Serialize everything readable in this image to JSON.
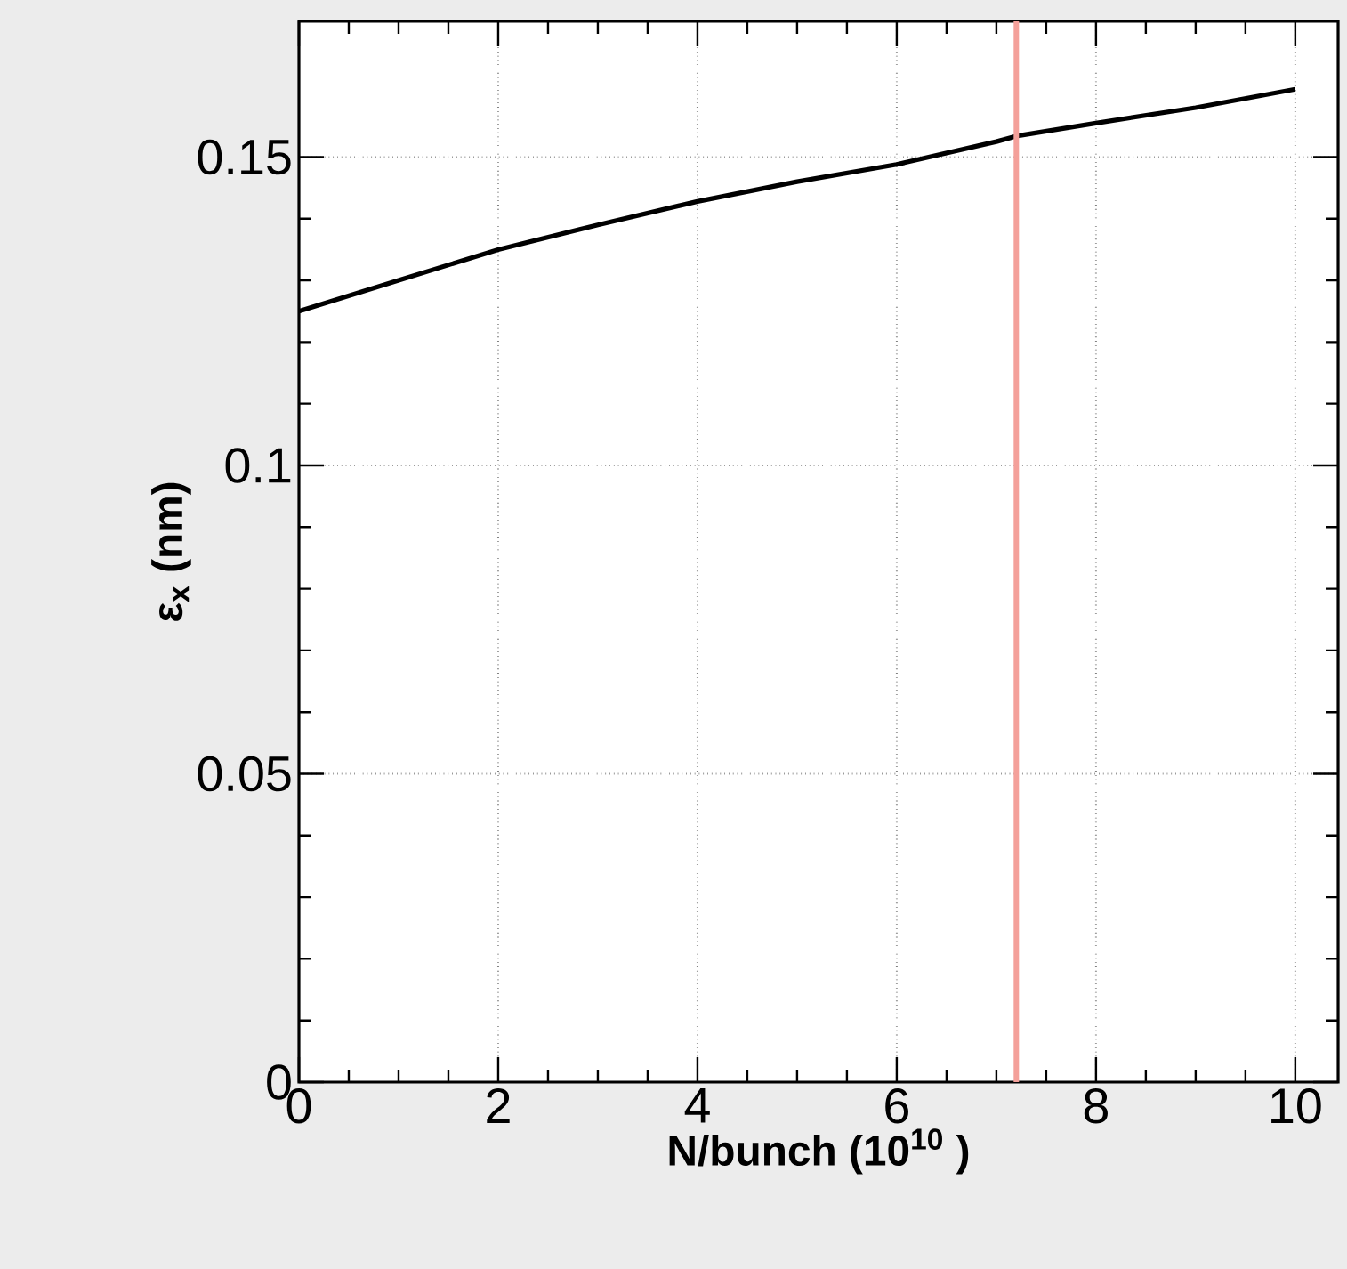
{
  "chart_data": {
    "type": "line",
    "xlabel": "N/bunch (10$^{10}$ )",
    "ylabel": "ε$_{x}$ (nm)",
    "x": [
      0,
      1,
      2,
      3,
      4,
      5,
      6,
      7,
      7.2,
      8,
      9,
      10
    ],
    "series": [
      {
        "color": "#000000",
        "values": [
          0.125,
          0.13,
          0.135,
          0.139,
          0.1428,
          0.146,
          0.1488,
          0.1525,
          0.1534,
          0.1555,
          0.158,
          0.161
        ]
      }
    ],
    "xlim": [
      0,
      10.43
    ],
    "ylim": [
      0,
      0.172
    ],
    "xticks": [
      0,
      2,
      4,
      6,
      8,
      10
    ],
    "yticks": [
      0,
      0.05,
      0.1,
      0.15
    ],
    "grid": true,
    "ref_lines": [
      {
        "axis": "x",
        "value": 7.2,
        "color": "#f4a09a"
      }
    ]
  }
}
